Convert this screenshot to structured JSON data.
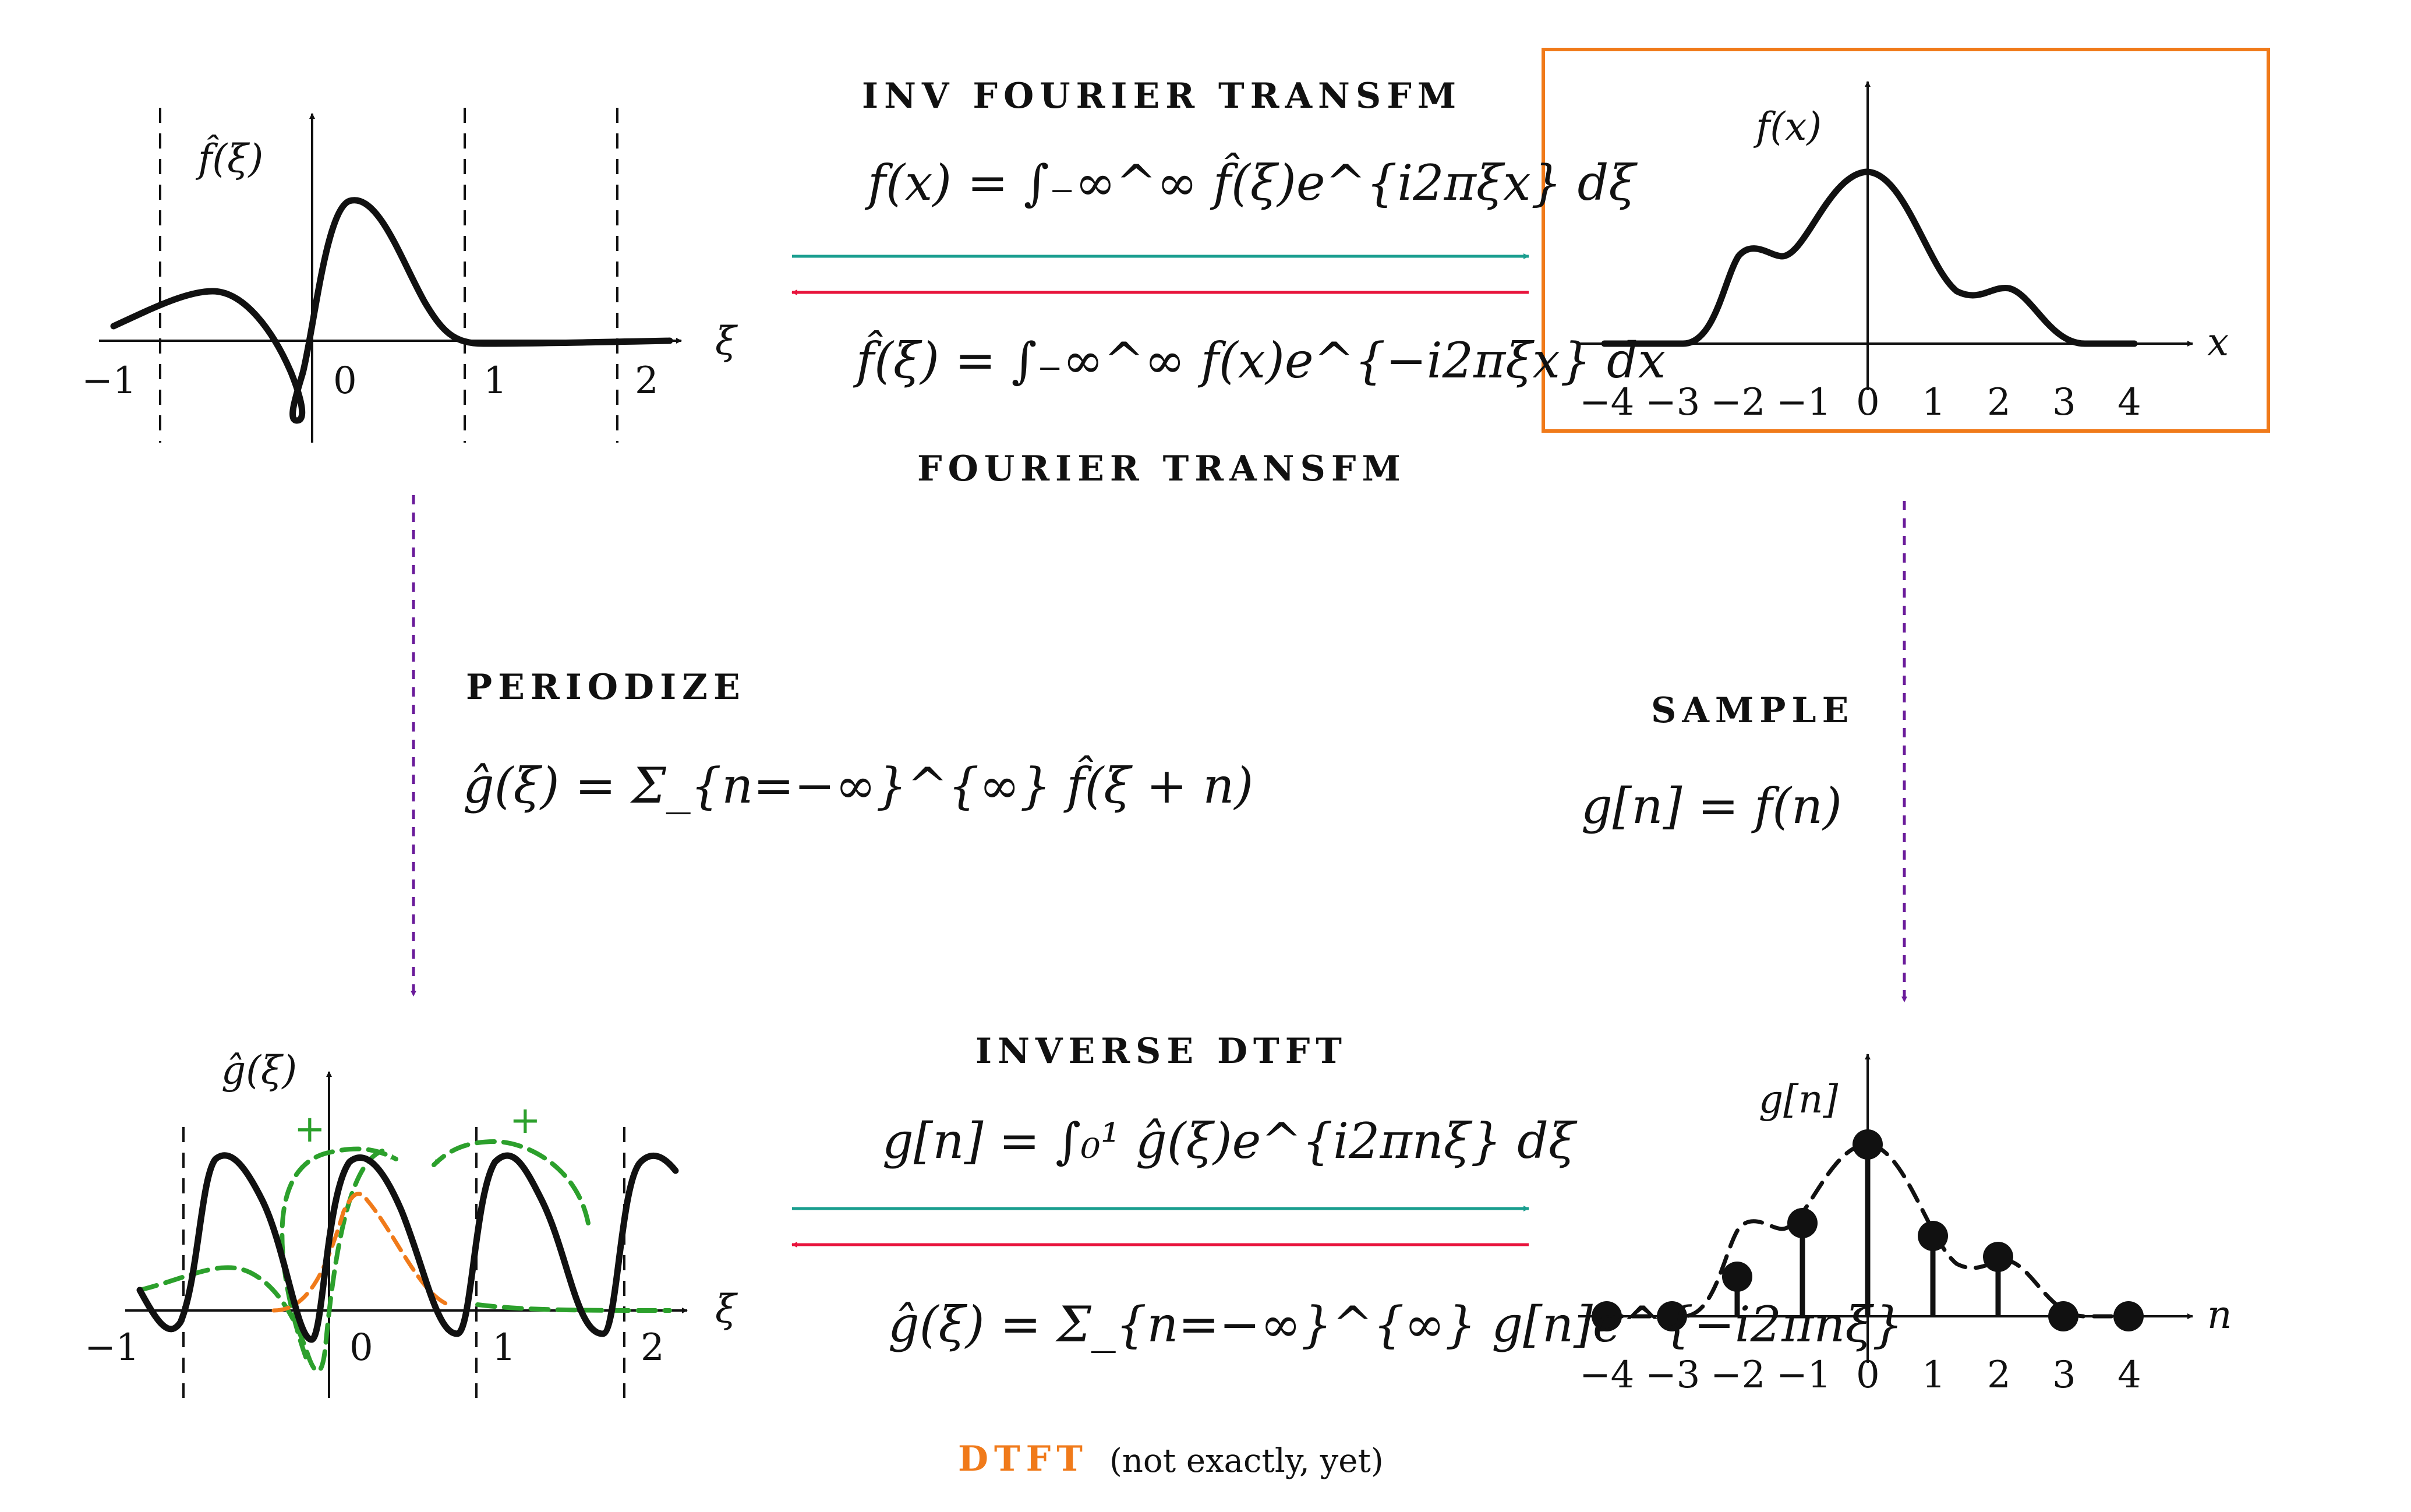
{
  "labels": {
    "inv_fourier": "INV FOURIER TRANSFM",
    "fourier": "FOURIER TRANSFM",
    "periodize": "PERIODIZE",
    "sample": "SAMPLE",
    "inverse_dtft": "INVERSE DTFT",
    "dtft": "DTFT",
    "dtft_note": "(not exactly, yet)"
  },
  "equations": {
    "inv_fourier": "f(x) = ∫₋∞^∞ f̂(ξ)e^{i2πξx} dξ",
    "fourier": "f̂(ξ) = ∫₋∞^∞ f(x)e^{−i2πξx} dx",
    "periodize": "ĝ(ξ) = Σ_{n=−∞}^{∞} f̂(ξ + n)",
    "sample": "g[n] = f(n)",
    "inverse_dtft": "g[n] = ∫₀¹ ĝ(ξ)e^{i2πnξ} dξ",
    "dtft": "ĝ(ξ) = Σ_{n=−∞}^{∞} g[n]e^{−i2πnξ}"
  },
  "plots": {
    "fhat": {
      "ylabel": "f̂(ξ)",
      "xlabel": "ξ",
      "ticks": [
        "−1",
        "0",
        "1",
        "2"
      ]
    },
    "f": {
      "ylabel": "f(x)",
      "xlabel": "x",
      "ticks": [
        "−4",
        "−3",
        "−2",
        "−1",
        "0",
        "1",
        "2",
        "3",
        "4"
      ]
    },
    "ghat": {
      "ylabel": "ĝ(ξ)",
      "xlabel": "ξ",
      "ticks": [
        "−1",
        "0",
        "1",
        "2"
      ],
      "plus": "+"
    },
    "g": {
      "ylabel": "g[n]",
      "xlabel": "n",
      "ticks": [
        "−4",
        "−3",
        "−2",
        "−1",
        "0",
        "1",
        "2",
        "3",
        "4"
      ]
    }
  },
  "colors": {
    "teal": "#1a9e8f",
    "red": "#e8143c",
    "purple": "#6a1b9a",
    "orange": "#f07a1a",
    "green": "#2ca02c"
  }
}
